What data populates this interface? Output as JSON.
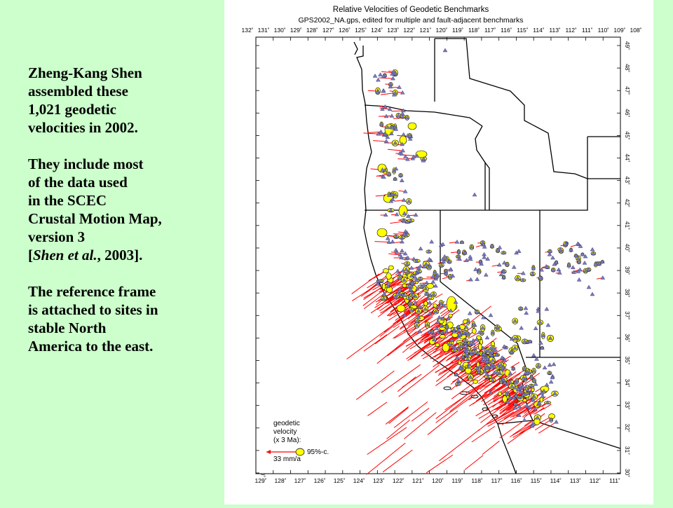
{
  "description": {
    "paragraphs": [
      [
        "Zheng-Kang Shen",
        "assembled these",
        "1,021 geodetic",
        "velocities in 2002."
      ],
      [
        "They include most",
        "of the data used",
        "in the SCEC",
        "Crustal Motion Map,",
        "version 3"
      ],
      [
        "The reference frame",
        "is attached to sites in",
        "stable North",
        "America to the east."
      ]
    ],
    "citation_prefix": "[",
    "citation_authors": "Shen et al.",
    "citation_suffix": ", 2003]."
  },
  "map": {
    "title": "Relative Velocities of Geodetic Benchmarks",
    "subtitle": "GPS2002_NA.gps, edited for multiple and fault-adjacent benchmarks",
    "top_longitudes": [
      "132˚",
      "131˚",
      "130˚",
      "129˚",
      "128˚",
      "127˚",
      "126˚",
      "125˚",
      "124˚",
      "123˚",
      "122˚",
      "121˚",
      "120˚",
      "119˚",
      "118˚",
      "117˚",
      "116˚",
      "115˚",
      "114˚",
      "113˚",
      "112˚",
      "111˚",
      "110˚",
      "109˚",
      "108˚"
    ],
    "bottom_longitudes": [
      "129˚",
      "128˚",
      "127˚",
      "126˚",
      "125˚",
      "124˚",
      "123˚",
      "122˚",
      "121˚",
      "120˚",
      "119˚",
      "118˚",
      "117˚",
      "116˚",
      "115˚",
      "114˚",
      "113˚",
      "112˚",
      "111˚"
    ],
    "latitudes": [
      "49˚",
      "48˚",
      "47˚",
      "46˚",
      "45˚",
      "44˚",
      "43˚",
      "42˚",
      "41˚",
      "40˚",
      "39˚",
      "38˚",
      "37˚",
      "36˚",
      "35˚",
      "34˚",
      "33˚",
      "32˚",
      "31˚",
      "30˚"
    ],
    "legend": {
      "line1": "geodetic",
      "line2": "velocity",
      "line3": "(x 3 Ma):",
      "ellipse_label": "95%-c.",
      "rate_label": "33 mm/a"
    },
    "colors": {
      "vector": "#ff0000",
      "ellipse": "#ffff00",
      "station": "#7a7ab8",
      "border": "#000000"
    }
  }
}
